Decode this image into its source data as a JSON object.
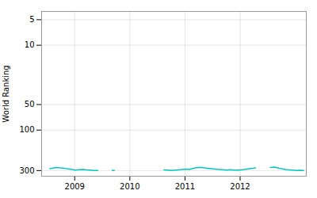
{
  "chart_data": {
    "type": "line",
    "ylabel": "World Ranking",
    "x": [
      2008.55,
      2008.62,
      2008.68,
      2008.75,
      2008.82,
      2008.88,
      2008.95,
      2009.02,
      2009.08,
      2009.15,
      2009.22,
      2009.28,
      2009.35,
      2009.42,
      null,
      2009.68,
      2009.72,
      null,
      2010.62,
      2010.68,
      2010.75,
      2010.82,
      2010.88,
      2010.95,
      2011.02,
      2011.08,
      2011.15,
      2011.22,
      2011.28,
      2011.35,
      2011.42,
      2011.48,
      2011.55,
      2011.62,
      2011.68,
      2011.75,
      2011.82,
      2011.88,
      2011.95,
      2012.02,
      2012.08,
      2012.15,
      2012.22,
      2012.28,
      null,
      2012.55,
      2012.62,
      2012.68,
      2012.75,
      2012.82,
      2012.88,
      2012.95,
      2013.02,
      2013.08,
      2013.15
    ],
    "values": [
      285,
      279,
      276,
      280,
      283,
      287,
      292,
      296,
      293,
      291,
      295,
      297,
      299,
      300,
      null,
      299,
      298,
      null,
      295,
      297,
      299,
      297,
      294,
      291,
      289,
      291,
      282,
      278,
      275,
      279,
      283,
      286,
      289,
      291,
      293,
      296,
      293,
      296,
      297,
      294,
      291,
      287,
      283,
      279,
      null,
      276,
      273,
      279,
      286,
      291,
      294,
      297,
      299,
      298,
      300
    ],
    "color": "#00c8c0",
    "xlim": [
      2008.4,
      2013.2
    ],
    "xticks": [
      2009,
      2010,
      2011,
      2012
    ],
    "ylim": [
      350,
      4
    ],
    "yticks": [
      5,
      10,
      50,
      100,
      300
    ],
    "log": "y",
    "grid": true
  }
}
